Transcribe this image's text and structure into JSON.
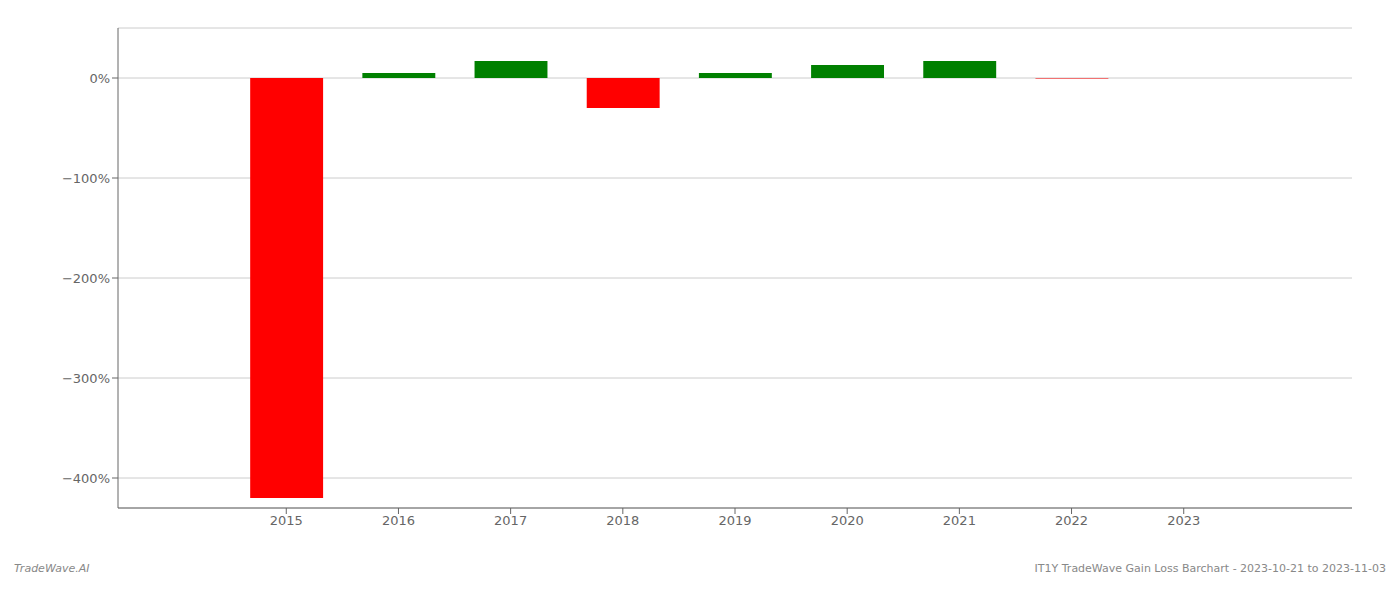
{
  "chart_data": {
    "type": "bar",
    "x": [
      2015,
      2016,
      2017,
      2018,
      2019,
      2020,
      2021,
      2022,
      2023
    ],
    "values": [
      -420,
      5,
      17,
      -30,
      5,
      13,
      17,
      -0.5,
      0
    ],
    "colors": [
      "#ff0000",
      "#008000",
      "#008000",
      "#ff0000",
      "#008000",
      "#008000",
      "#008000",
      "#ff0000",
      "#008000"
    ],
    "xlim": [
      2013.5,
      2024.5
    ],
    "xticks": [
      2015,
      2016,
      2017,
      2018,
      2019,
      2020,
      2021,
      2022,
      2023
    ],
    "ylim": [
      -430,
      50
    ],
    "yticks": [
      {
        "value": 0,
        "label": "0%"
      },
      {
        "value": -100,
        "label": "−100%"
      },
      {
        "value": -200,
        "label": "−200%"
      },
      {
        "value": -300,
        "label": "−300%"
      },
      {
        "value": -400,
        "label": "−400%"
      }
    ],
    "grid": true,
    "annotations": [
      "TradeWave.AI",
      "IT1Y TradeWave Gain Loss Barchart - 2023-10-21 to 2023-11-03"
    ]
  }
}
